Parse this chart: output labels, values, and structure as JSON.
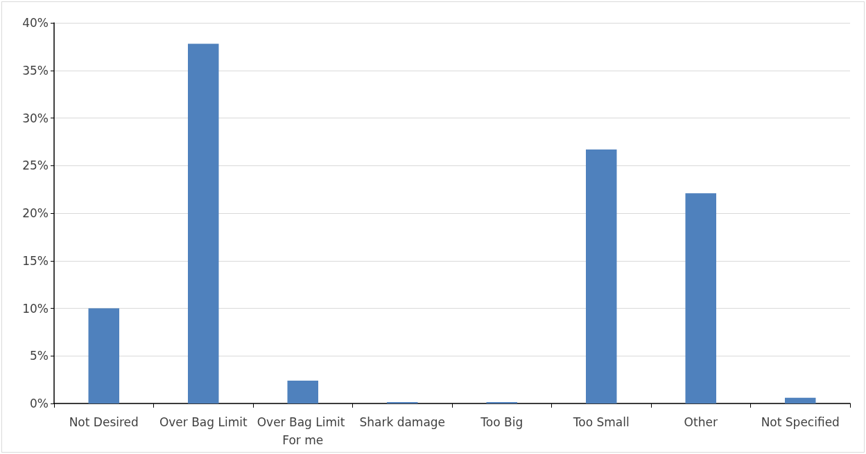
{
  "chart_data": {
    "type": "bar",
    "categories": [
      "Not Desired",
      "Over Bag Limit",
      "Over Bag Limit For me",
      "Shark damage",
      "Too Big",
      "Too Small",
      "Other",
      "Not Specified"
    ],
    "values": [
      10.0,
      37.8,
      2.4,
      0.15,
      0.15,
      26.7,
      22.1,
      0.6
    ],
    "color": "#4f81bd",
    "ylim": [
      0,
      40
    ],
    "yticks": [
      {
        "value": 0,
        "label": "0%"
      },
      {
        "value": 5,
        "label": "5%"
      },
      {
        "value": 10,
        "label": "10%"
      },
      {
        "value": 15,
        "label": "15%"
      },
      {
        "value": 20,
        "label": "20%"
      },
      {
        "value": 25,
        "label": "25%"
      },
      {
        "value": 30,
        "label": "30%"
      },
      {
        "value": 35,
        "label": "35%"
      },
      {
        "value": 40,
        "label": "40%"
      }
    ],
    "grid": "y"
  }
}
